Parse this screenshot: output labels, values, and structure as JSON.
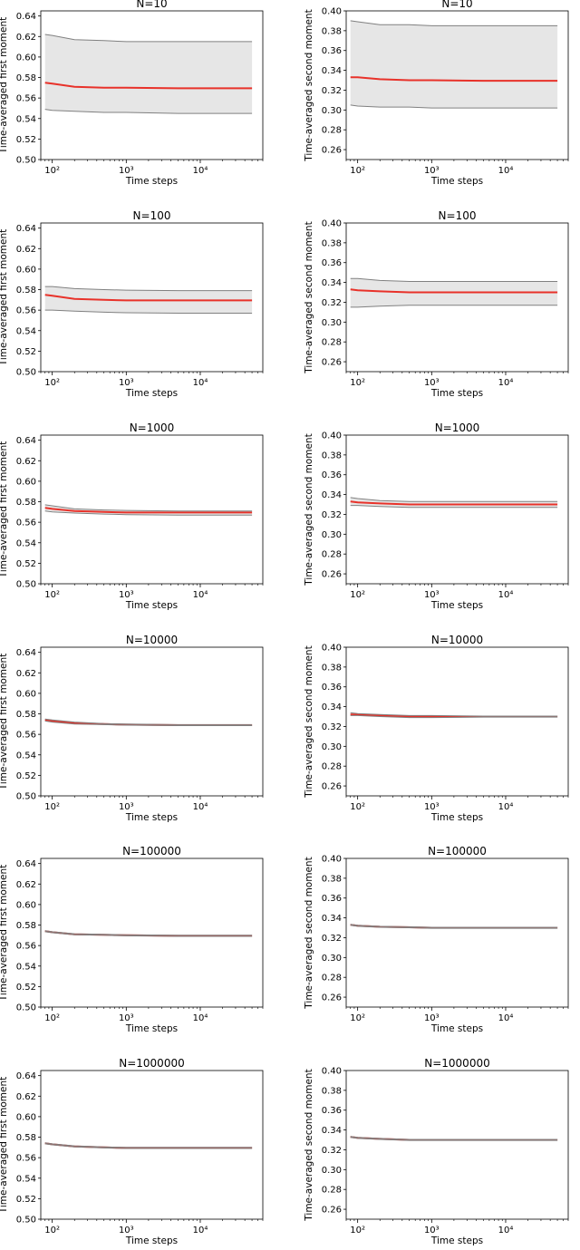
{
  "chart_data": [
    {
      "type": "line",
      "title": "N=10",
      "xlabel": "Time steps",
      "ylabel": "Time-averaged first moment",
      "x_scale": "log",
      "xlim": [
        70,
        70000
      ],
      "ylim": [
        0.5,
        0.645
      ],
      "yticks": [
        "0.50",
        "0.52",
        "0.54",
        "0.56",
        "0.58",
        "0.60",
        "0.62",
        "0.64"
      ],
      "xticks": [
        "10²",
        "10³",
        "10⁴"
      ],
      "x": [
        80,
        100,
        200,
        500,
        1000,
        5000,
        50000
      ],
      "series": [
        {
          "role": "mean",
          "color": "#e8322a",
          "values": [
            0.575,
            0.574,
            0.571,
            0.57,
            0.57,
            0.5695,
            0.5695
          ]
        },
        {
          "role": "upper",
          "color": "#808080",
          "values": [
            0.622,
            0.621,
            0.617,
            0.616,
            0.615,
            0.615,
            0.615
          ]
        },
        {
          "role": "lower",
          "color": "#808080",
          "values": [
            0.549,
            0.548,
            0.547,
            0.546,
            0.546,
            0.545,
            0.545
          ]
        }
      ],
      "band": {
        "color": "#e6e6e6"
      }
    },
    {
      "type": "line",
      "title": "N=10",
      "xlabel": "Time steps",
      "ylabel": "Time-averaged second moment",
      "x_scale": "log",
      "xlim": [
        70,
        70000
      ],
      "ylim": [
        0.25,
        0.4
      ],
      "yticks": [
        "0.26",
        "0.28",
        "0.30",
        "0.32",
        "0.34",
        "0.36",
        "0.38",
        "0.40"
      ],
      "xticks": [
        "10²",
        "10³",
        "10⁴"
      ],
      "x": [
        80,
        100,
        200,
        500,
        1000,
        5000,
        50000
      ],
      "series": [
        {
          "role": "mean",
          "color": "#e8322a",
          "values": [
            0.333,
            0.333,
            0.331,
            0.33,
            0.33,
            0.3295,
            0.3295
          ]
        },
        {
          "role": "upper",
          "color": "#808080",
          "values": [
            0.39,
            0.389,
            0.386,
            0.386,
            0.385,
            0.385,
            0.385
          ]
        },
        {
          "role": "lower",
          "color": "#808080",
          "values": [
            0.305,
            0.304,
            0.303,
            0.303,
            0.302,
            0.302,
            0.302
          ]
        }
      ],
      "band": {
        "color": "#e6e6e6"
      }
    },
    {
      "type": "line",
      "title": "N=100",
      "xlabel": "Time steps",
      "ylabel": "Time-averaged first moment",
      "x_scale": "log",
      "xlim": [
        70,
        70000
      ],
      "ylim": [
        0.5,
        0.645
      ],
      "yticks": [
        "0.50",
        "0.52",
        "0.54",
        "0.56",
        "0.58",
        "0.60",
        "0.62",
        "0.64"
      ],
      "xticks": [
        "10²",
        "10³",
        "10⁴"
      ],
      "x": [
        80,
        100,
        200,
        500,
        1000,
        5000,
        50000
      ],
      "series": [
        {
          "role": "mean",
          "color": "#e8322a",
          "values": [
            0.575,
            0.574,
            0.571,
            0.57,
            0.5695,
            0.5695,
            0.5695
          ]
        },
        {
          "role": "upper",
          "color": "#808080",
          "values": [
            0.583,
            0.583,
            0.581,
            0.58,
            0.5795,
            0.579,
            0.579
          ]
        },
        {
          "role": "lower",
          "color": "#808080",
          "values": [
            0.56,
            0.56,
            0.559,
            0.558,
            0.5575,
            0.557,
            0.557
          ]
        }
      ],
      "band": {
        "color": "#e6e6e6"
      }
    },
    {
      "type": "line",
      "title": "N=100",
      "xlabel": "Time steps",
      "ylabel": "Time-averaged second moment",
      "x_scale": "log",
      "xlim": [
        70,
        70000
      ],
      "ylim": [
        0.25,
        0.4
      ],
      "yticks": [
        "0.26",
        "0.28",
        "0.30",
        "0.32",
        "0.34",
        "0.36",
        "0.38",
        "0.40"
      ],
      "xticks": [
        "10²",
        "10³",
        "10⁴"
      ],
      "x": [
        80,
        100,
        200,
        500,
        1000,
        5000,
        50000
      ],
      "series": [
        {
          "role": "mean",
          "color": "#e8322a",
          "values": [
            0.333,
            0.332,
            0.331,
            0.33,
            0.33,
            0.33,
            0.33
          ]
        },
        {
          "role": "upper",
          "color": "#808080",
          "values": [
            0.344,
            0.344,
            0.342,
            0.341,
            0.341,
            0.341,
            0.341
          ]
        },
        {
          "role": "lower",
          "color": "#808080",
          "values": [
            0.315,
            0.315,
            0.316,
            0.317,
            0.317,
            0.317,
            0.317
          ]
        }
      ],
      "band": {
        "color": "#e6e6e6"
      }
    },
    {
      "type": "line",
      "title": "N=1000",
      "xlabel": "Time steps",
      "ylabel": "Time-averaged first moment",
      "x_scale": "log",
      "xlim": [
        70,
        70000
      ],
      "ylim": [
        0.5,
        0.645
      ],
      "yticks": [
        "0.50",
        "0.52",
        "0.54",
        "0.56",
        "0.58",
        "0.60",
        "0.62",
        "0.64"
      ],
      "xticks": [
        "10²",
        "10³",
        "10⁴"
      ],
      "x": [
        80,
        100,
        200,
        500,
        1000,
        5000,
        50000
      ],
      "series": [
        {
          "role": "mean",
          "color": "#e8322a",
          "values": [
            0.574,
            0.573,
            0.571,
            0.57,
            0.5695,
            0.5695,
            0.5695
          ]
        },
        {
          "role": "upper",
          "color": "#808080",
          "values": [
            0.577,
            0.576,
            0.573,
            0.572,
            0.5715,
            0.571,
            0.571
          ]
        },
        {
          "role": "lower",
          "color": "#808080",
          "values": [
            0.571,
            0.57,
            0.569,
            0.568,
            0.5675,
            0.567,
            0.567
          ]
        }
      ],
      "band": {
        "color": "#e6e6e6"
      }
    },
    {
      "type": "line",
      "title": "N=1000",
      "xlabel": "Time steps",
      "ylabel": "Time-averaged second moment",
      "x_scale": "log",
      "xlim": [
        70,
        70000
      ],
      "ylim": [
        0.25,
        0.4
      ],
      "yticks": [
        "0.26",
        "0.28",
        "0.30",
        "0.32",
        "0.34",
        "0.36",
        "0.38",
        "0.40"
      ],
      "xticks": [
        "10²",
        "10³",
        "10⁴"
      ],
      "x": [
        80,
        100,
        200,
        500,
        1000,
        5000,
        50000
      ],
      "series": [
        {
          "role": "mean",
          "color": "#e8322a",
          "values": [
            0.333,
            0.332,
            0.331,
            0.33,
            0.33,
            0.33,
            0.33
          ]
        },
        {
          "role": "upper",
          "color": "#808080",
          "values": [
            0.337,
            0.336,
            0.334,
            0.333,
            0.333,
            0.333,
            0.333
          ]
        },
        {
          "role": "lower",
          "color": "#808080",
          "values": [
            0.329,
            0.329,
            0.328,
            0.327,
            0.327,
            0.327,
            0.327
          ]
        }
      ],
      "band": {
        "color": "#e6e6e6"
      }
    },
    {
      "type": "line",
      "title": "N=10000",
      "xlabel": "Time steps",
      "ylabel": "Time-averaged first moment",
      "x_scale": "log",
      "xlim": [
        70,
        70000
      ],
      "ylim": [
        0.5,
        0.645
      ],
      "yticks": [
        "0.50",
        "0.52",
        "0.54",
        "0.56",
        "0.58",
        "0.60",
        "0.62",
        "0.64"
      ],
      "xticks": [
        "10²",
        "10³",
        "10⁴"
      ],
      "x": [
        80,
        100,
        200,
        500,
        1000,
        5000,
        50000
      ],
      "series": [
        {
          "role": "mean",
          "color": "#e8322a",
          "values": [
            0.574,
            0.573,
            0.571,
            0.57,
            0.5695,
            0.569,
            0.569
          ]
        },
        {
          "role": "upper",
          "color": "#808080",
          "values": [
            0.575,
            0.574,
            0.572,
            0.5705,
            0.57,
            0.5695,
            0.5695
          ]
        },
        {
          "role": "lower",
          "color": "#808080",
          "values": [
            0.573,
            0.572,
            0.57,
            0.5695,
            0.569,
            0.5685,
            0.5685
          ]
        }
      ],
      "band": {
        "color": "#e6e6e6"
      }
    },
    {
      "type": "line",
      "title": "N=10000",
      "xlabel": "Time steps",
      "ylabel": "Time-averaged second moment",
      "x_scale": "log",
      "xlim": [
        70,
        70000
      ],
      "ylim": [
        0.25,
        0.4
      ],
      "yticks": [
        "0.26",
        "0.28",
        "0.30",
        "0.32",
        "0.34",
        "0.36",
        "0.38",
        "0.40"
      ],
      "xticks": [
        "10²",
        "10³",
        "10⁴"
      ],
      "x": [
        80,
        100,
        200,
        500,
        1000,
        5000,
        50000
      ],
      "series": [
        {
          "role": "mean",
          "color": "#e8322a",
          "values": [
            0.332,
            0.332,
            0.331,
            0.33,
            0.33,
            0.33,
            0.33
          ]
        },
        {
          "role": "upper",
          "color": "#808080",
          "values": [
            0.334,
            0.333,
            0.332,
            0.331,
            0.331,
            0.3305,
            0.3305
          ]
        },
        {
          "role": "lower",
          "color": "#808080",
          "values": [
            0.331,
            0.331,
            0.33,
            0.329,
            0.329,
            0.3295,
            0.3295
          ]
        }
      ],
      "band": {
        "color": "#e6e6e6"
      }
    },
    {
      "type": "line",
      "title": "N=100000",
      "xlabel": "Time steps",
      "ylabel": "Time-averaged first moment",
      "x_scale": "log",
      "xlim": [
        70,
        70000
      ],
      "ylim": [
        0.5,
        0.645
      ],
      "yticks": [
        "0.50",
        "0.52",
        "0.54",
        "0.56",
        "0.58",
        "0.60",
        "0.62",
        "0.64"
      ],
      "xticks": [
        "10²",
        "10³",
        "10⁴"
      ],
      "x": [
        80,
        100,
        200,
        500,
        1000,
        5000,
        50000
      ],
      "series": [
        {
          "role": "mean",
          "color": "#e8322a",
          "values": [
            0.574,
            0.573,
            0.571,
            0.5705,
            0.57,
            0.5695,
            0.5695
          ]
        },
        {
          "role": "upper",
          "color": "#808080",
          "values": [
            0.5745,
            0.5735,
            0.5715,
            0.571,
            0.5705,
            0.57,
            0.57
          ]
        },
        {
          "role": "lower",
          "color": "#808080",
          "values": [
            0.5735,
            0.5725,
            0.5705,
            0.57,
            0.5695,
            0.569,
            0.569
          ]
        }
      ],
      "band": {
        "color": "#e6e6e6"
      }
    },
    {
      "type": "line",
      "title": "N=100000",
      "xlabel": "Time steps",
      "ylabel": "Time-averaged second moment",
      "x_scale": "log",
      "xlim": [
        70,
        70000
      ],
      "ylim": [
        0.25,
        0.4
      ],
      "yticks": [
        "0.26",
        "0.28",
        "0.30",
        "0.32",
        "0.34",
        "0.36",
        "0.38",
        "0.40"
      ],
      "xticks": [
        "10²",
        "10³",
        "10⁴"
      ],
      "x": [
        80,
        100,
        200,
        500,
        1000,
        5000,
        50000
      ],
      "series": [
        {
          "role": "mean",
          "color": "#e8322a",
          "values": [
            0.333,
            0.332,
            0.331,
            0.3305,
            0.33,
            0.33,
            0.33
          ]
        },
        {
          "role": "upper",
          "color": "#808080",
          "values": [
            0.3335,
            0.3325,
            0.3315,
            0.331,
            0.3305,
            0.3305,
            0.3305
          ]
        },
        {
          "role": "lower",
          "color": "#808080",
          "values": [
            0.3325,
            0.3315,
            0.3305,
            0.33,
            0.3295,
            0.3295,
            0.3295
          ]
        }
      ],
      "band": {
        "color": "#e6e6e6"
      }
    },
    {
      "type": "line",
      "title": "N=1000000",
      "xlabel": "Time steps",
      "ylabel": "Time-averaged first moment",
      "x_scale": "log",
      "xlim": [
        70,
        70000
      ],
      "ylim": [
        0.5,
        0.645
      ],
      "yticks": [
        "0.50",
        "0.52",
        "0.54",
        "0.56",
        "0.58",
        "0.60",
        "0.62",
        "0.64"
      ],
      "xticks": [
        "10²",
        "10³",
        "10⁴"
      ],
      "x": [
        80,
        100,
        200,
        500,
        1000,
        5000,
        50000
      ],
      "series": [
        {
          "role": "mean",
          "color": "#e8322a",
          "values": [
            0.574,
            0.573,
            0.571,
            0.57,
            0.5695,
            0.5695,
            0.5695
          ]
        },
        {
          "role": "upper",
          "color": "#808080",
          "values": [
            0.5745,
            0.5735,
            0.5715,
            0.5705,
            0.57,
            0.57,
            0.57
          ]
        },
        {
          "role": "lower",
          "color": "#808080",
          "values": [
            0.5735,
            0.5725,
            0.5705,
            0.5695,
            0.569,
            0.569,
            0.569
          ]
        }
      ],
      "band": {
        "color": "#e6e6e6"
      }
    },
    {
      "type": "line",
      "title": "N=1000000",
      "xlabel": "Time steps",
      "ylabel": "Time-averaged second moment",
      "x_scale": "log",
      "xlim": [
        70,
        70000
      ],
      "ylim": [
        0.25,
        0.4
      ],
      "yticks": [
        "0.26",
        "0.28",
        "0.30",
        "0.32",
        "0.34",
        "0.36",
        "0.38",
        "0.40"
      ],
      "xticks": [
        "10²",
        "10³",
        "10⁴"
      ],
      "x": [
        80,
        100,
        200,
        500,
        1000,
        5000,
        50000
      ],
      "series": [
        {
          "role": "mean",
          "color": "#e8322a",
          "values": [
            0.333,
            0.332,
            0.331,
            0.33,
            0.33,
            0.33,
            0.33
          ]
        },
        {
          "role": "upper",
          "color": "#808080",
          "values": [
            0.3335,
            0.3325,
            0.3315,
            0.3305,
            0.3305,
            0.3305,
            0.3305
          ]
        },
        {
          "role": "lower",
          "color": "#808080",
          "values": [
            0.3325,
            0.3315,
            0.3305,
            0.3295,
            0.3295,
            0.3295,
            0.3295
          ]
        }
      ],
      "band": {
        "color": "#e6e6e6"
      }
    }
  ]
}
